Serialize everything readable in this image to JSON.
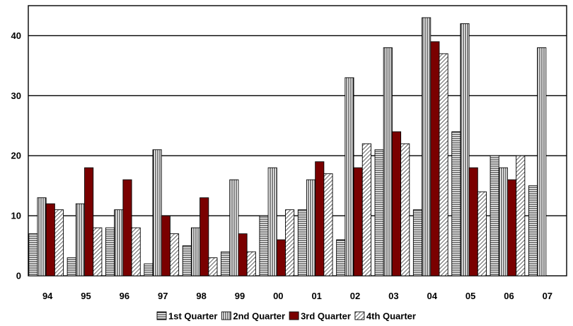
{
  "chart_data": {
    "type": "bar",
    "title": "",
    "xlabel": "",
    "ylabel": "",
    "categories": [
      "94",
      "95",
      "96",
      "97",
      "98",
      "99",
      "00",
      "01",
      "02",
      "03",
      "04",
      "05",
      "06",
      "07"
    ],
    "yticks": [
      "0",
      "10",
      "20",
      "30",
      "40"
    ],
    "ylim": [
      0,
      45
    ],
    "grid": "horizontal",
    "legend_position": "bottom",
    "series": [
      {
        "name": "1st Quarter",
        "pattern": "horizontal-lines",
        "color": "#ffffff",
        "values": [
          7,
          3,
          8,
          2,
          5,
          4,
          10,
          11,
          6,
          21,
          11,
          24,
          20,
          15
        ]
      },
      {
        "name": "2nd Quarter",
        "pattern": "vertical-lines",
        "color": "#ffffff",
        "values": [
          13,
          12,
          11,
          21,
          8,
          16,
          18,
          16,
          33,
          38,
          43,
          42,
          18,
          38
        ]
      },
      {
        "name": "3rd Quarter",
        "pattern": "solid",
        "color": "#7a0000",
        "values": [
          12,
          18,
          16,
          10,
          13,
          7,
          6,
          19,
          18,
          24,
          39,
          18,
          16,
          null
        ]
      },
      {
        "name": "4th Quarter",
        "pattern": "diagonal-lines",
        "color": "#ffffff",
        "values": [
          11,
          8,
          8,
          7,
          3,
          4,
          11,
          17,
          22,
          22,
          37,
          14,
          20,
          null
        ]
      }
    ]
  }
}
